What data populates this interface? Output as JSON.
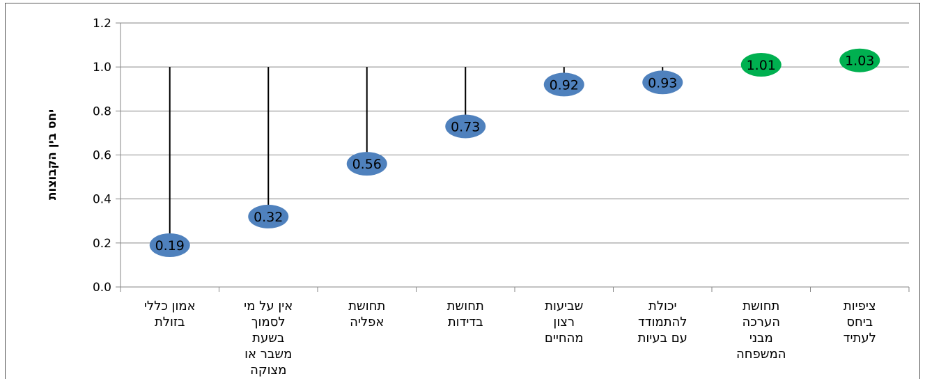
{
  "chart_data": {
    "type": "scatter",
    "title": "",
    "xlabel": "",
    "ylabel": "יחס בין הקבוצות",
    "ylim": [
      0,
      1.2
    ],
    "yticks": [
      "0.0",
      "0.2",
      "0.4",
      "0.6",
      "0.8",
      "1.0",
      "1.2"
    ],
    "grid": true,
    "legend": "none",
    "reference_value": 1.0,
    "categories": [
      [
        "אמון כללי",
        "בזולת"
      ],
      [
        "אין על מי",
        "לסמוך",
        "בשעת",
        "משבר או",
        "מצוקה"
      ],
      [
        "תחושת",
        "אפליה"
      ],
      [
        "תחושת",
        "בדידות"
      ],
      [
        "שביעות",
        "רצון",
        "מהחיים"
      ],
      [
        "יכולת",
        "להתמודד",
        "עם בעיות"
      ],
      [
        "תחושת",
        "הערכה",
        "מבני",
        "המשפחה"
      ],
      [
        "ציפיות",
        "ביחס",
        "לעתיד"
      ]
    ],
    "values": [
      0.19,
      0.32,
      0.56,
      0.73,
      0.92,
      0.93,
      1.01,
      1.03
    ],
    "labels": [
      "0.19",
      "0.32",
      "0.56",
      "0.73",
      "0.92",
      "0.93",
      "1.01",
      "1.03"
    ],
    "colors": {
      "below_one": "#4f81bd",
      "above_one": "#00b050",
      "gridline": "#868686",
      "stem": "#000000"
    }
  }
}
